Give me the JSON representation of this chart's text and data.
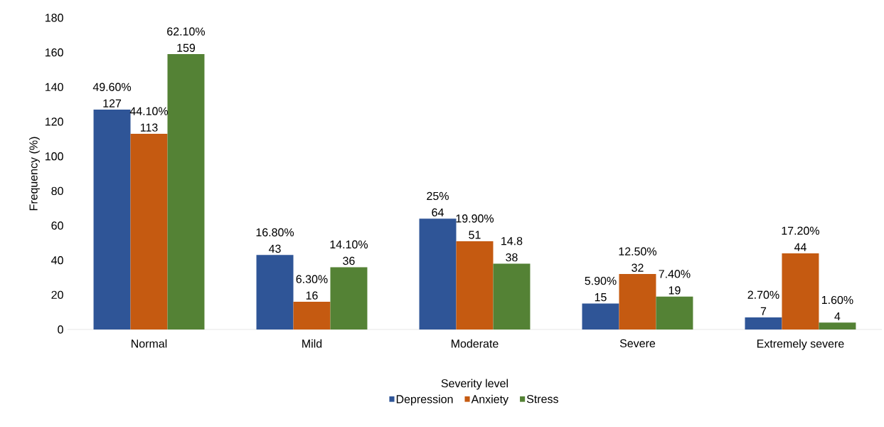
{
  "chart_data": {
    "type": "bar",
    "xlabel": "Severity level",
    "ylabel": "Frequency (%)",
    "categories": [
      "Normal",
      "Mild",
      "Moderate",
      "Severe",
      "Extremely severe"
    ],
    "series": [
      {
        "name": "Depression",
        "color": "#2f5597",
        "values": [
          127,
          43,
          64,
          15,
          7
        ],
        "value_labels": [
          "49.60%\n127",
          "16.80%\n43",
          "25%\n64",
          "5.90%\n15",
          "2.70%\n7"
        ]
      },
      {
        "name": "Anxiety",
        "color": "#c55a11",
        "values": [
          113,
          16,
          51,
          32,
          44
        ],
        "value_labels": [
          "44.10%\n113",
          "6.30%\n16",
          "19.90%\n51",
          "12.50%\n32",
          "17.20%\n44"
        ]
      },
      {
        "name": "Stress",
        "color": "#548235",
        "values": [
          159,
          36,
          38,
          19,
          4
        ],
        "value_labels": [
          "62.10%\n159",
          "14.10%\n36",
          "14.8\n38",
          "7.40%\n19",
          "1.60%\n4"
        ]
      }
    ],
    "ylim": [
      0,
      180
    ],
    "yticks": [
      0,
      20,
      40,
      60,
      80,
      100,
      120,
      140,
      160,
      180
    ],
    "grid": false,
    "legend": "bottom"
  }
}
